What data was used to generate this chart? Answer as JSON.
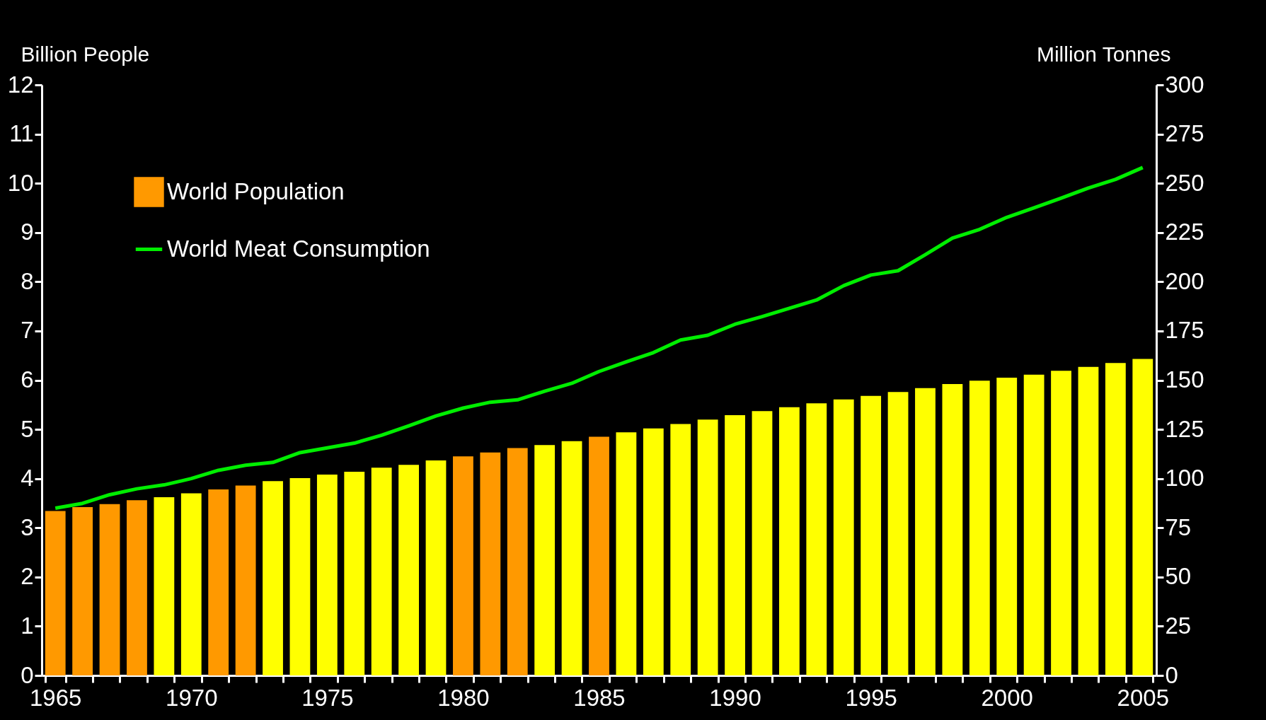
{
  "chart_data": {
    "type": "bar",
    "categories": [
      "1965",
      null,
      null,
      null,
      null,
      "1970",
      null,
      null,
      null,
      null,
      "1975",
      null,
      null,
      null,
      null,
      "1980",
      null,
      null,
      null,
      null,
      "1985",
      null,
      null,
      null,
      null,
      "1990",
      null,
      null,
      null,
      null,
      "1995",
      null,
      null,
      null,
      null,
      "2000",
      null,
      null,
      null,
      null,
      "2005"
    ],
    "ylabel": "Billion People",
    "y2label": "Million Tonnes",
    "ylim": [
      0,
      12
    ],
    "yticks": [
      0,
      1,
      2,
      3,
      4,
      5,
      6,
      7,
      8,
      9,
      10,
      11,
      12
    ],
    "y2lim": [
      0,
      300
    ],
    "y2ticks": [
      0,
      25,
      50,
      75,
      100,
      125,
      150,
      175,
      200,
      225,
      250,
      275,
      300
    ],
    "legend": "top left",
    "series": [
      {
        "name": "World Population",
        "color": "#ff9900",
        "colors": [
          "#ff9900",
          "#ff9900",
          "#ff9900",
          "#ff9900",
          "#ffff00",
          "#ffff00",
          "#ff9900",
          "#ff9900",
          "#ffff00",
          "#ffff00",
          "#ffff00",
          "#ffff00",
          "#ffff00",
          "#ffff00",
          "#ffff00",
          "#ff9900",
          "#ff9900",
          "#ff9900",
          "#ffff00",
          "#ffff00",
          "#ff9900",
          "#ffff00",
          "#ffff00",
          "#ffff00",
          "#ffff00",
          "#ffff00",
          "#ffff00",
          "#ffff00",
          "#ffff00",
          "#ffff00",
          "#ffff00",
          "#ffff00",
          "#ffff00",
          "#ffff00",
          "#ffff00",
          "#ffff00",
          "#ffff00",
          "#ffff00",
          "#ffff00",
          "#ffff00",
          "#ffff00"
        ],
        "values": [
          3.34,
          3.42,
          3.48,
          3.56,
          3.62,
          3.7,
          3.78,
          3.86,
          3.95,
          4.01,
          4.08,
          4.14,
          4.22,
          4.28,
          4.37,
          4.45,
          4.53,
          4.62,
          4.68,
          4.76,
          4.85,
          4.94,
          5.02,
          5.11,
          5.2,
          5.29,
          5.37,
          5.45,
          5.53,
          5.61,
          5.68,
          5.76,
          5.84,
          5.92,
          5.99,
          6.05,
          6.11,
          6.19,
          6.27,
          6.35,
          6.43
        ]
      },
      {
        "name": "World Meat Consumption",
        "type": "line",
        "axis": "y2",
        "color": "#00ee00",
        "values": [
          85,
          87.4,
          91.8,
          94.8,
          96.8,
          100,
          104.2,
          106.8,
          108.2,
          113.2,
          115.6,
          118,
          122,
          126.8,
          131.8,
          135.8,
          138.8,
          140,
          144.4,
          148.4,
          154.4,
          159.3,
          164,
          170.4,
          172.8,
          178.4,
          182.3,
          186.5,
          190.7,
          198,
          203.4,
          205.6,
          213.7,
          222.2,
          226.6,
          232.7,
          237.5,
          242.5,
          247.6,
          252,
          258
        ]
      }
    ]
  }
}
